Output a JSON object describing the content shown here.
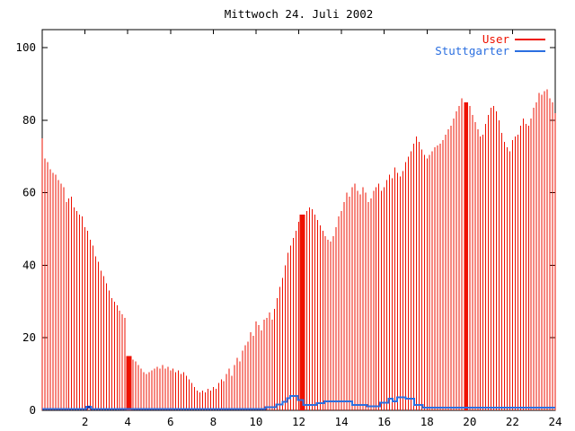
{
  "page": {
    "background": "#ffffff"
  },
  "chart_data": {
    "type": "bar",
    "subtype": "gnuplot-impulses-with-step-line",
    "title": "Mittwoch 24. Juli 2002",
    "xlabel": "",
    "ylabel": "",
    "x_unit": "hour-of-day",
    "xlim": [
      0,
      24
    ],
    "ylim": [
      0,
      105
    ],
    "x_ticks": [
      2,
      4,
      6,
      8,
      10,
      12,
      14,
      16,
      18,
      20,
      22,
      24
    ],
    "y_ticks": [
      0,
      20,
      40,
      60,
      80,
      100
    ],
    "grid": false,
    "legend_position": "top-right-inside",
    "frame_color": "#000000",
    "background_color": "#ffffff",
    "sample_interval_hours": 0.125,
    "series": [
      {
        "name": "User",
        "style": "impulses",
        "color": "#ee1100",
        "values": [
          75,
          69.5,
          68.5,
          66.5,
          65.5,
          65,
          63.5,
          62.5,
          61.5,
          57.5,
          58.5,
          59,
          56,
          55,
          54,
          53.5,
          50.5,
          49.5,
          47,
          45.5,
          42.5,
          41,
          38.5,
          37,
          35,
          33,
          31,
          30,
          29,
          27.5,
          26.5,
          25.5,
          15,
          15,
          14,
          13.5,
          12.5,
          11.5,
          10.5,
          10,
          10.5,
          11,
          11.5,
          12,
          11.5,
          12.5,
          11.5,
          12,
          11,
          11.5,
          10.5,
          11,
          10,
          10.5,
          9.5,
          8.5,
          7.5,
          6.5,
          5.5,
          5,
          5.5,
          5,
          6,
          5.5,
          6.5,
          6,
          7.5,
          8.5,
          8,
          10,
          11.5,
          9.5,
          12.5,
          14.5,
          13.5,
          16.5,
          18,
          19,
          21.5,
          20.5,
          24.5,
          23.5,
          22,
          25,
          25.5,
          27,
          25,
          28,
          31,
          34,
          36.5,
          40,
          43.5,
          45.5,
          47.5,
          49.5,
          52,
          53.5,
          54,
          55,
          56,
          55.5,
          54,
          52.5,
          51,
          49.5,
          48,
          47,
          46.5,
          48,
          50.5,
          53.5,
          55,
          57.5,
          60,
          59,
          61.5,
          62.5,
          60.5,
          59.5,
          61.5,
          60,
          57.5,
          58.5,
          60.5,
          61.5,
          62.5,
          60.5,
          61.5,
          63.5,
          65,
          64,
          67,
          65.5,
          64.5,
          66,
          68.5,
          70,
          71.5,
          73.5,
          75.5,
          74,
          72,
          70.5,
          69.5,
          70.5,
          71.5,
          72.5,
          73,
          73.5,
          74.5,
          76,
          77.5,
          78.5,
          80.5,
          82.5,
          84,
          86,
          85,
          84.5,
          84,
          81.5,
          79.5,
          77.5,
          75.5,
          76,
          79,
          81.5,
          83.5,
          84,
          82.5,
          80,
          76.5,
          74,
          72.5,
          71.5,
          74.5,
          75.5,
          76,
          78.5,
          80.5,
          79,
          78.5,
          80.5,
          83.5,
          85,
          87.5,
          87,
          88,
          88.5,
          86,
          85,
          82
        ]
      },
      {
        "name": "Stuttgarter",
        "style": "steps",
        "color": "#2b6fe0",
        "points": [
          [
            0,
            0.4
          ],
          [
            2.05,
            0.4
          ],
          [
            2.05,
            1.0
          ],
          [
            2.3,
            1.0
          ],
          [
            2.3,
            0.4
          ],
          [
            10.45,
            0.4
          ],
          [
            10.45,
            0.9
          ],
          [
            10.95,
            0.9
          ],
          [
            10.95,
            1.6
          ],
          [
            11.25,
            1.6
          ],
          [
            11.25,
            2.3
          ],
          [
            11.45,
            2.3
          ],
          [
            11.45,
            3.4
          ],
          [
            11.6,
            3.4
          ],
          [
            11.6,
            4.0
          ],
          [
            11.95,
            4.0
          ],
          [
            11.95,
            2.8
          ],
          [
            12.2,
            2.8
          ],
          [
            12.2,
            1.5
          ],
          [
            12.85,
            1.5
          ],
          [
            12.85,
            2.0
          ],
          [
            13.2,
            2.0
          ],
          [
            13.2,
            2.5
          ],
          [
            14.5,
            2.5
          ],
          [
            14.5,
            1.5
          ],
          [
            15.2,
            1.5
          ],
          [
            15.2,
            1.1
          ],
          [
            15.8,
            1.1
          ],
          [
            15.8,
            2.1
          ],
          [
            16.2,
            2.1
          ],
          [
            16.2,
            3.2
          ],
          [
            16.4,
            3.2
          ],
          [
            16.4,
            2.5
          ],
          [
            16.6,
            2.5
          ],
          [
            16.6,
            3.6
          ],
          [
            17.0,
            3.6
          ],
          [
            17.0,
            3.2
          ],
          [
            17.4,
            3.2
          ],
          [
            17.4,
            1.5
          ],
          [
            17.8,
            1.5
          ],
          [
            17.8,
            0.7
          ],
          [
            24,
            0.7
          ]
        ],
        "point_marker": {
          "hour": 2.17,
          "value": 0.9,
          "color": "#1133aa"
        }
      }
    ],
    "dense_bands": [
      {
        "from_hour": 3.92,
        "to_hour": 4.18,
        "value": 15
      },
      {
        "from_hour": 12.05,
        "to_hour": 12.3,
        "value": 54
      },
      {
        "from_hour": 19.73,
        "to_hour": 19.93,
        "value": 85
      }
    ]
  }
}
